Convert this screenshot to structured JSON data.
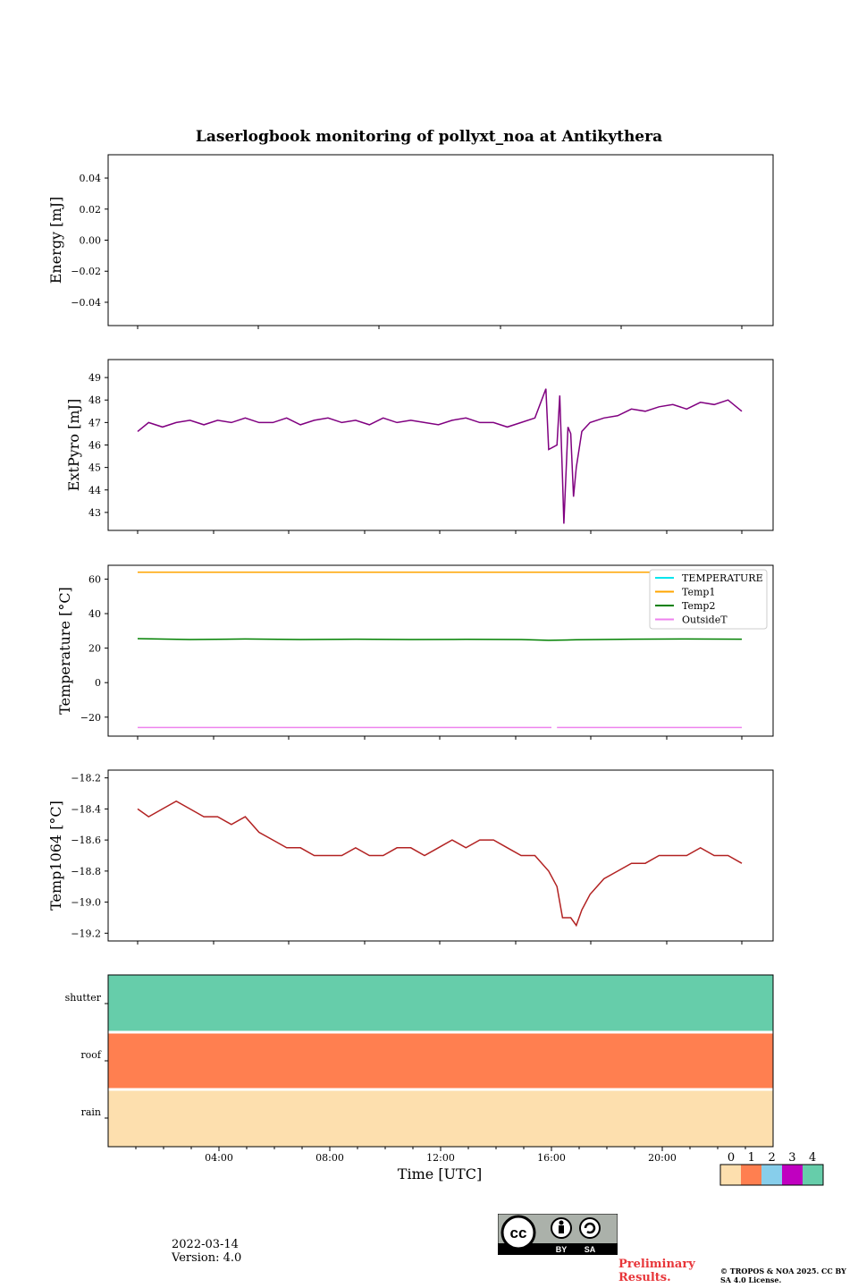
{
  "figure": {
    "title": "Laserlogbook monitoring of pollyxt_noa at Antikythera",
    "xlabel": "Time [UTC]",
    "date": "2022-03-14",
    "version": "Version: 4.0",
    "preliminary": "Preliminary Results.",
    "copyright": "© TROPOS & NOA 2025. CC BY SA 4.0 License.",
    "license_badge": {
      "by": "BY",
      "sa": "SA",
      "cc": "cc"
    }
  },
  "chart_data": [
    {
      "id": "energy",
      "type": "line",
      "ylabel": "Energy [mJ]",
      "ylim": [
        -0.055,
        0.055
      ],
      "yticks": [
        0.04,
        0.02,
        0.0,
        -0.02,
        -0.04
      ],
      "ytick_labels": [
        "0.04",
        "0.02",
        "0.00",
        "−0.02",
        "−0.04"
      ],
      "series": []
    },
    {
      "id": "extpyro",
      "type": "line",
      "ylabel": "ExtPyro [mJ]",
      "ylim": [
        42.2,
        49.8
      ],
      "yticks": [
        49,
        48,
        47,
        46,
        45,
        44,
        43
      ],
      "ytick_labels": [
        "49",
        "48",
        "47",
        "46",
        "45",
        "44",
        "43"
      ],
      "xlim_hours": [
        1.1,
        23.0
      ],
      "color": "#800080",
      "series": [
        {
          "x_hours": [
            1.1,
            1.5,
            2.0,
            2.5,
            3.0,
            3.5,
            4.0,
            4.5,
            5.0,
            5.5,
            6.0,
            6.5,
            7.0,
            7.5,
            8.0,
            8.5,
            9.0,
            9.5,
            10.0,
            10.5,
            11.0,
            11.5,
            12.0,
            12.5,
            13.0,
            13.5,
            14.0,
            14.5,
            15.0,
            15.5,
            15.9,
            16.0,
            16.3,
            16.4,
            16.5,
            16.55,
            16.7,
            16.8,
            16.9,
            17.0,
            17.2,
            17.5,
            18.0,
            18.5,
            19.0,
            19.5,
            20.0,
            20.5,
            21.0,
            21.5,
            22.0,
            22.5,
            23.0
          ],
          "values": [
            46.6,
            47.0,
            46.8,
            47.0,
            47.1,
            46.9,
            47.1,
            47.0,
            47.2,
            47.0,
            47.0,
            47.2,
            46.9,
            47.1,
            47.2,
            47.0,
            47.1,
            46.9,
            47.2,
            47.0,
            47.1,
            47.0,
            46.9,
            47.1,
            47.2,
            47.0,
            47.0,
            46.8,
            47.0,
            47.2,
            48.5,
            45.8,
            46.0,
            48.2,
            44.5,
            42.5,
            46.8,
            46.5,
            43.7,
            45.0,
            46.6,
            47.0,
            47.2,
            47.3,
            47.6,
            47.5,
            47.7,
            47.8,
            47.6,
            47.9,
            47.8,
            48.0,
            47.5
          ]
        }
      ]
    },
    {
      "id": "temperature",
      "type": "line",
      "ylabel": "Temperature [°C]",
      "ylim": [
        -31,
        68
      ],
      "yticks": [
        60,
        40,
        20,
        0,
        -20
      ],
      "ytick_labels": [
        "60",
        "40",
        "20",
        "0",
        "−20"
      ],
      "legend_position": "top-right",
      "series": [
        {
          "name": "TEMPERATURE",
          "color": "#00e5ee",
          "x_hours": [],
          "values": []
        },
        {
          "name": "Temp1",
          "color": "#ffa500",
          "x_hours": [
            1.1,
            23.0
          ],
          "values": [
            64.0,
            64.0
          ]
        },
        {
          "name": "Temp2",
          "color": "#008000",
          "x_hours": [
            1.1,
            3.0,
            5.0,
            7.0,
            9.0,
            11.0,
            13.0,
            15.0,
            16.0,
            17.0,
            19.0,
            21.0,
            23.0
          ],
          "values": [
            25.5,
            25.0,
            25.3,
            25.0,
            25.2,
            25.0,
            25.1,
            25.0,
            24.5,
            24.8,
            25.2,
            25.3,
            25.2
          ]
        },
        {
          "name": "OutsideT",
          "color": "#ee82ee",
          "x_hours": [
            1.1,
            16.1,
            null,
            16.3,
            23.0
          ],
          "values": [
            -26.0,
            -26.0,
            null,
            -26.0,
            -26.0
          ]
        }
      ]
    },
    {
      "id": "temp1064",
      "type": "line",
      "ylabel": "Temp1064 [°C]",
      "ylim": [
        -19.25,
        -18.15
      ],
      "yticks": [
        -18.2,
        -18.4,
        -18.6,
        -18.8,
        -19.0,
        -19.2
      ],
      "ytick_labels": [
        "−18.2",
        "−18.4",
        "−18.6",
        "−18.8",
        "−19.0",
        "−19.2"
      ],
      "color": "#b22222",
      "series": [
        {
          "x_hours": [
            1.1,
            1.5,
            2.0,
            2.5,
            3.0,
            3.5,
            4.0,
            4.5,
            5.0,
            5.5,
            6.0,
            6.5,
            7.0,
            7.5,
            8.0,
            8.5,
            9.0,
            9.5,
            10.0,
            10.5,
            11.0,
            11.5,
            12.0,
            12.5,
            13.0,
            13.5,
            14.0,
            14.5,
            15.0,
            15.5,
            16.0,
            16.3,
            16.5,
            16.8,
            17.0,
            17.2,
            17.5,
            18.0,
            18.5,
            19.0,
            19.5,
            20.0,
            20.5,
            21.0,
            21.5,
            22.0,
            22.5,
            23.0
          ],
          "values": [
            -18.4,
            -18.45,
            -18.4,
            -18.35,
            -18.4,
            -18.45,
            -18.45,
            -18.5,
            -18.45,
            -18.55,
            -18.6,
            -18.65,
            -18.65,
            -18.7,
            -18.7,
            -18.7,
            -18.65,
            -18.7,
            -18.7,
            -18.65,
            -18.65,
            -18.7,
            -18.65,
            -18.6,
            -18.65,
            -18.6,
            -18.6,
            -18.65,
            -18.7,
            -18.7,
            -18.8,
            -18.9,
            -19.1,
            -19.1,
            -19.15,
            -19.05,
            -18.95,
            -18.85,
            -18.8,
            -18.75,
            -18.75,
            -18.7,
            -18.7,
            -18.7,
            -18.65,
            -18.7,
            -18.7,
            -18.75
          ]
        }
      ]
    },
    {
      "id": "status",
      "type": "heatmap",
      "rows": [
        "shutter",
        "roof",
        "rain"
      ],
      "row_values": [
        4,
        1,
        0
      ],
      "xticks_hours": [
        4,
        8,
        12,
        16,
        20
      ],
      "xtick_labels": [
        "04:00",
        "08:00",
        "12:00",
        "16:00",
        "20:00"
      ],
      "xlim_hours": [
        0,
        24
      ],
      "colorbar": {
        "labels": [
          "0",
          "1",
          "2",
          "3",
          "4"
        ],
        "colors": [
          "#fddfae",
          "#ff7f50",
          "#87ceeb",
          "#c000c0",
          "#66cdaa"
        ]
      }
    }
  ]
}
